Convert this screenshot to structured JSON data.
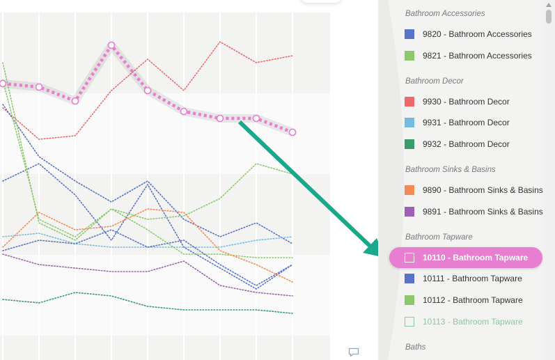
{
  "chart_data": {
    "type": "line",
    "x": [
      0,
      1,
      2,
      3,
      4,
      5,
      6,
      7,
      8
    ],
    "ylim": [
      0,
      100
    ],
    "grid": true,
    "series": [
      {
        "name": "10110 - Bathroom Tapware",
        "color": "#e87ed0",
        "highlighted": true,
        "values": [
          80,
          79,
          75,
          91,
          78,
          72,
          70,
          70,
          66
        ]
      },
      {
        "name": "9930 - Bathroom Decor",
        "color": "#ec6a6a",
        "values": [
          73,
          64,
          65,
          78,
          87,
          78,
          92,
          86,
          88
        ]
      },
      {
        "name": "9820 - Bathroom Accessories",
        "color": "#5a72c8",
        "values": [
          74,
          59,
          52,
          46,
          52,
          41,
          36,
          40,
          34
        ]
      },
      {
        "name": "9820 - Bathroom Accessories",
        "color": "#5a72c8",
        "values": [
          52,
          57,
          48,
          35,
          51,
          33,
          27,
          21,
          28
        ]
      },
      {
        "name": "9821 - Bathroom Accessories",
        "color": "#8dc86e",
        "values": [
          81,
          41,
          36,
          44,
          41,
          42,
          47,
          57,
          54
        ]
      },
      {
        "name": "10112 - Bathroom Tapware",
        "color": "#8dc86e",
        "values": [
          86,
          40,
          35,
          44,
          38,
          31,
          31,
          30,
          30
        ]
      },
      {
        "name": "9931 - Bathroom Decor",
        "color": "#74bde0",
        "values": [
          36,
          37,
          34,
          33,
          33,
          33,
          33,
          35,
          36
        ]
      },
      {
        "name": "9890 - Bathroom Sinks & Basins",
        "color": "#f38b58",
        "values": [
          33,
          43,
          38,
          39,
          44,
          43,
          32,
          28,
          23
        ]
      },
      {
        "name": "10111 - Bathroom Tapware",
        "color": "#5a72c8",
        "values": [
          32,
          35,
          34,
          38,
          33,
          35,
          28,
          22,
          28
        ]
      },
      {
        "name": "9891 - Bathroom Sinks & Basins",
        "color": "#9d60b4",
        "values": [
          31,
          28,
          27,
          26,
          26,
          29,
          22,
          20,
          19
        ]
      },
      {
        "name": "9932 - Bathroom Decor",
        "color": "#3c9a6c",
        "values": [
          18,
          17,
          20,
          19,
          16,
          15,
          15,
          15,
          14
        ]
      }
    ]
  },
  "legend": {
    "groups": [
      {
        "title": "Bathroom Accessories",
        "items": [
          {
            "label": "9820 - Bathroom Accessories",
            "color": "#5a72c8",
            "state": "normal"
          },
          {
            "label": "9821 - Bathroom Accessories",
            "color": "#8dc86e",
            "state": "normal"
          }
        ]
      },
      {
        "title": "Bathroom Decor",
        "items": [
          {
            "label": "9930 - Bathroom Decor",
            "color": "#ec6a6a",
            "state": "normal"
          },
          {
            "label": "9931 - Bathroom Decor",
            "color": "#74bde0",
            "state": "normal"
          },
          {
            "label": "9932 - Bathroom Decor",
            "color": "#3c9a6c",
            "state": "normal"
          }
        ]
      },
      {
        "title": "Bathroom Sinks & Basins",
        "items": [
          {
            "label": "9890 - Bathroom Sinks & Basins",
            "color": "#f38b58",
            "state": "normal"
          },
          {
            "label": "9891 - Bathroom Sinks & Basins",
            "color": "#9d60b4",
            "state": "normal"
          }
        ]
      },
      {
        "title": "Bathroom Tapware",
        "items": [
          {
            "label": "10110 - Bathroom Tapware",
            "color": "#e87ed0",
            "state": "active"
          },
          {
            "label": "10111 - Bathroom Tapware",
            "color": "#5a72c8",
            "state": "normal"
          },
          {
            "label": "10112 - Bathroom Tapware",
            "color": "#8dc86e",
            "state": "normal"
          },
          {
            "label": "10113 - Bathroom Tapware",
            "color": "#8cc79f",
            "state": "hidden"
          }
        ]
      },
      {
        "title": "Baths",
        "items": []
      }
    ]
  },
  "annotation": {
    "arrow_color": "#1aa88a",
    "icon": "arrow-icon"
  },
  "icons": {
    "comment": "comment-icon"
  }
}
